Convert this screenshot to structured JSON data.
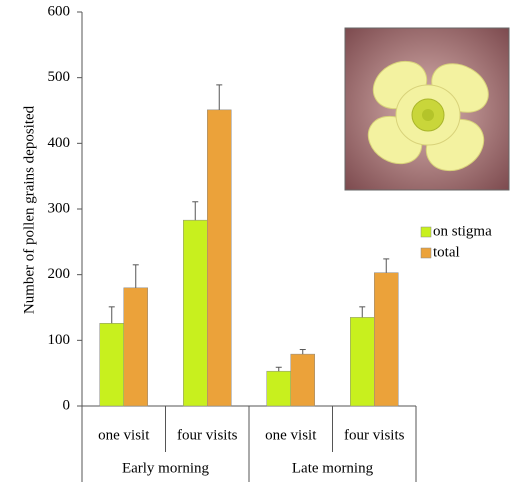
{
  "chart_data": {
    "type": "bar",
    "y_label": "Number of pollen grains deposited",
    "categories": [
      "one visit",
      "four visits",
      "one visit",
      "four visits"
    ],
    "groups": [
      "Early morning",
      "Late morning"
    ],
    "series": [
      {
        "name": "on stigma",
        "color": "#c8f01e",
        "values": [
          126,
          283,
          53,
          135
        ],
        "errors": [
          25,
          28,
          6,
          16
        ]
      },
      {
        "name": "total",
        "color": "#eba23a",
        "values": [
          180,
          451,
          79,
          203
        ],
        "errors": [
          35,
          38,
          7,
          21
        ]
      }
    ],
    "ylim": [
      0,
      600
    ],
    "yticks": [
      0,
      100,
      200,
      300,
      400,
      500,
      600
    ],
    "grid": false,
    "legend": "right"
  }
}
